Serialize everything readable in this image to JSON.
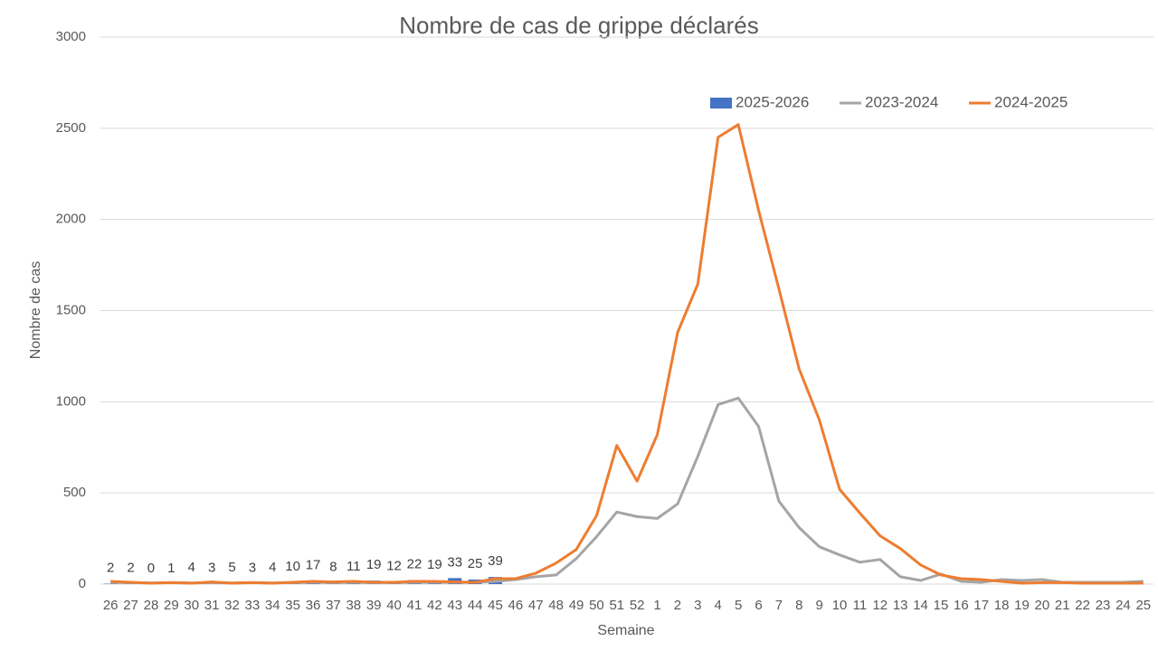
{
  "chart_data": {
    "type": "bar_line_combo",
    "title": "Nombre de cas de grippe déclarés",
    "y_label": "Nombre de cas",
    "x_label": "Semaine",
    "legend_position": "top",
    "grid": true,
    "ylim": [
      0,
      3000
    ],
    "yticks": [
      0,
      500,
      1000,
      1500,
      2000,
      2500,
      3000
    ],
    "categories": [
      "26",
      "27",
      "28",
      "29",
      "30",
      "31",
      "32",
      "33",
      "34",
      "35",
      "36",
      "37",
      "38",
      "39",
      "40",
      "41",
      "42",
      "43",
      "44",
      "45",
      "46",
      "47",
      "48",
      "49",
      "50",
      "51",
      "52",
      "1",
      "2",
      "3",
      "4",
      "5",
      "6",
      "7",
      "8",
      "9",
      "10",
      "11",
      "12",
      "13",
      "14",
      "15",
      "16",
      "17",
      "18",
      "19",
      "20",
      "21",
      "22",
      "23",
      "24",
      "25"
    ],
    "series": [
      {
        "name": "2025-2026",
        "kind": "bar",
        "color": "#4472c4",
        "values": [
          2,
          2,
          0,
          1,
          4,
          3,
          5,
          3,
          4,
          10,
          17,
          8,
          11,
          19,
          12,
          22,
          19,
          33,
          25,
          39,
          null,
          null,
          null,
          null,
          null,
          null,
          null,
          null,
          null,
          null,
          null,
          null,
          null,
          null,
          null,
          null,
          null,
          null,
          null,
          null,
          null,
          null,
          null,
          null,
          null,
          null,
          null,
          null,
          null,
          null,
          null,
          null
        ]
      },
      {
        "name": "2023-2024",
        "kind": "line",
        "color": "#a5a5a5",
        "values": [
          10,
          8,
          6,
          8,
          6,
          8,
          6,
          8,
          6,
          8,
          10,
          8,
          10,
          8,
          8,
          10,
          10,
          10,
          10,
          15,
          25,
          40,
          50,
          140,
          260,
          395,
          370,
          360,
          440,
          700,
          985,
          1020,
          865,
          455,
          310,
          205,
          160,
          120,
          135,
          40,
          20,
          55,
          15,
          10,
          25,
          20,
          25,
          10,
          10,
          10,
          10,
          15
        ]
      },
      {
        "name": "2024-2025",
        "kind": "line",
        "color": "#ed7d31",
        "values": [
          15,
          10,
          5,
          8,
          5,
          12,
          5,
          8,
          5,
          10,
          15,
          12,
          15,
          10,
          10,
          15,
          15,
          12,
          10,
          30,
          30,
          60,
          115,
          190,
          375,
          760,
          565,
          820,
          1380,
          1645,
          2450,
          2520,
          2050,
          1620,
          1180,
          900,
          520,
          390,
          265,
          195,
          105,
          50,
          30,
          25,
          15,
          5,
          8,
          8,
          5,
          5,
          5,
          5
        ]
      }
    ]
  }
}
